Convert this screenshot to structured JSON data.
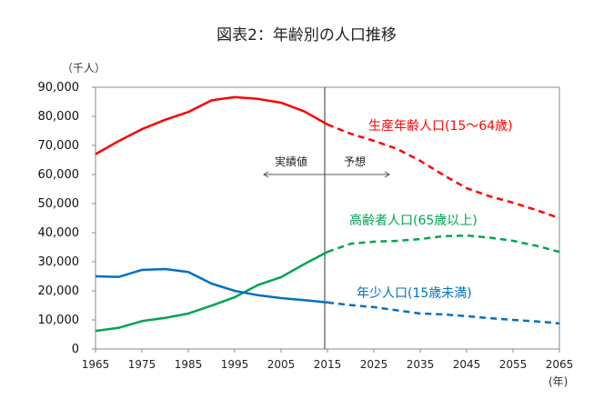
{
  "chart_data": {
    "type": "line",
    "title": "図表2：年齢別の人口推移",
    "ylabel": "（千人）",
    "xlabel": "(年)",
    "ylim": [
      0,
      90000
    ],
    "xlim": [
      1965,
      2065
    ],
    "yticks": [
      0,
      10000,
      20000,
      30000,
      40000,
      50000,
      60000,
      70000,
      80000,
      90000
    ],
    "ytick_labels": [
      "0",
      "10,000",
      "20,000",
      "30,000",
      "40,000",
      "50,000",
      "60,000",
      "70,000",
      "80,000",
      "90,000"
    ],
    "xticks": [
      "1965",
      "1975",
      "1985",
      "1995",
      "2005",
      "2015",
      "2025",
      "2035",
      "2045",
      "2055",
      "2065"
    ],
    "grid": false,
    "divider_year": 2015,
    "annotations": {
      "actual": "実績値",
      "forecast": "予想"
    },
    "x": [
      1965,
      1970,
      1975,
      1980,
      1985,
      1990,
      1995,
      2000,
      2005,
      2010,
      2015,
      2020,
      2025,
      2030,
      2035,
      2040,
      2045,
      2050,
      2055,
      2060,
      2065
    ],
    "series": [
      {
        "name": "生産年齢人口(15〜64歳)",
        "color": "#ff0000",
        "values": [
          67000,
          71500,
          75600,
          78800,
          81500,
          85500,
          86600,
          86000,
          84700,
          81700,
          77200,
          74000,
          71600,
          68800,
          64700,
          59800,
          55300,
          52500,
          50300,
          47800,
          45000
        ]
      },
      {
        "name": "高齢者人口(65歳以上)",
        "color": "#00a550",
        "values": [
          6200,
          7300,
          9600,
          10700,
          12200,
          14900,
          17800,
          22000,
          24700,
          29200,
          33400,
          36200,
          36900,
          37200,
          37800,
          38800,
          39000,
          38300,
          37200,
          35500,
          33400
        ]
      },
      {
        "name": "年少人口(15歳未満)",
        "color": "#0070c0",
        "values": [
          25000,
          24800,
          27200,
          27500,
          26500,
          22500,
          20000,
          18500,
          17500,
          16800,
          16000,
          15100,
          14400,
          13300,
          12200,
          11900,
          11300,
          10600,
          10000,
          9500,
          8800
        ]
      }
    ]
  }
}
